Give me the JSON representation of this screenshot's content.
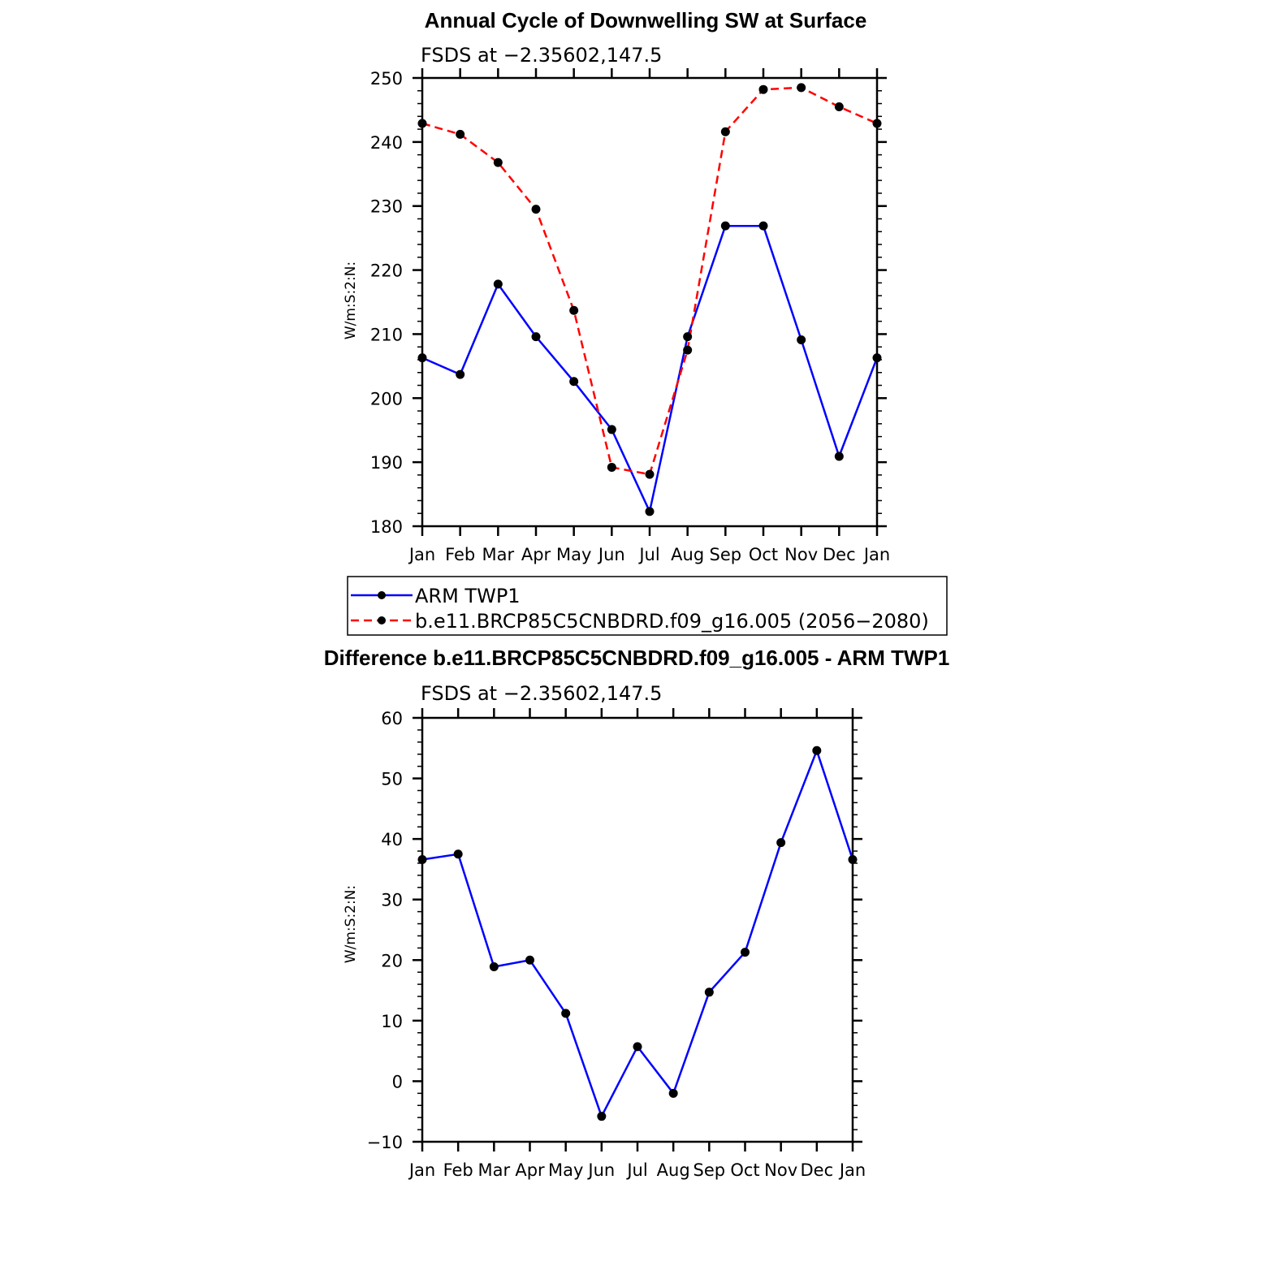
{
  "chart_data": [
    {
      "type": "line",
      "title": "Annual Cycle of Downwelling SW at Surface",
      "subtitle": "FSDS at −2.35602,147.5",
      "ylabel": "W/m:S:2:N:",
      "xlabel": "",
      "categories": [
        "Jan",
        "Feb",
        "Mar",
        "Apr",
        "May",
        "Jun",
        "Jul",
        "Aug",
        "Sep",
        "Oct",
        "Nov",
        "Dec",
        "Jan"
      ],
      "ylim": [
        180,
        250
      ],
      "yticks": [
        180,
        190,
        200,
        210,
        220,
        230,
        240,
        250
      ],
      "grid": false,
      "legend": "below",
      "series": [
        {
          "name": "ARM TWP1",
          "color": "#0000ff",
          "dash": "solid",
          "values": [
            206.3,
            203.7,
            217.8,
            209.6,
            202.6,
            195.1,
            182.3,
            209.6,
            226.9,
            226.9,
            209.1,
            190.9,
            206.3
          ]
        },
        {
          "name": "b.e11.BRCP85C5CNBDRD.f09_g16.005 (2056−2080)",
          "color": "#ff0000",
          "dash": "dashed",
          "values": [
            242.9,
            241.2,
            236.8,
            229.5,
            213.7,
            189.2,
            188.1,
            207.5,
            241.6,
            248.2,
            248.5,
            245.5,
            242.9
          ]
        }
      ]
    },
    {
      "type": "line",
      "title": "Difference b.e11.BRCP85C5CNBDRD.f09_g16.005 - ARM TWP1",
      "subtitle": "FSDS at −2.35602,147.5",
      "ylabel": "W/m:S:2:N:",
      "xlabel": "",
      "categories": [
        "Jan",
        "Feb",
        "Mar",
        "Apr",
        "May",
        "Jun",
        "Jul",
        "Aug",
        "Sep",
        "Oct",
        "Nov",
        "Dec",
        "Jan"
      ],
      "ylim": [
        -10,
        60
      ],
      "yticks": [
        -10,
        0,
        10,
        20,
        30,
        40,
        50,
        60
      ],
      "yticklabels": [
        "−10",
        "0",
        "10",
        "20",
        "30",
        "40",
        "50",
        "60"
      ],
      "grid": false,
      "series": [
        {
          "color": "#0000ff",
          "dash": "solid",
          "values": [
            36.6,
            37.5,
            18.9,
            20.0,
            11.2,
            -5.8,
            5.7,
            -2.0,
            14.7,
            21.3,
            39.4,
            54.6,
            36.6
          ]
        }
      ]
    }
  ]
}
